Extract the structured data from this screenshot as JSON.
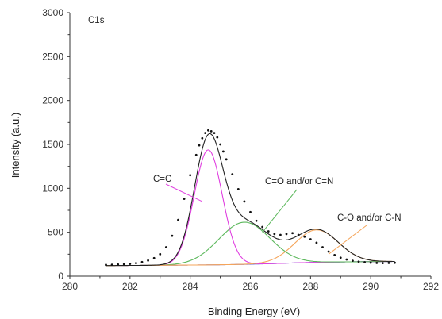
{
  "chart_data": {
    "type": "line",
    "title": "C1s",
    "xlabel": "Binding Energy (eV)",
    "ylabel": "Intensity (a.u.)",
    "xlim": [
      280,
      292
    ],
    "ylim": [
      0,
      3000
    ],
    "x_ticks": [
      "280",
      "282",
      "284",
      "286",
      "288",
      "290",
      "292"
    ],
    "y_ticks": [
      "0",
      "500",
      "1000",
      "1500",
      "2000",
      "2500",
      "3000"
    ],
    "grid": false,
    "baseline": 120,
    "measured": {
      "x": [
        281.2,
        281.4,
        281.6,
        281.8,
        282.0,
        282.2,
        282.4,
        282.6,
        282.8,
        283.0,
        283.2,
        283.4,
        283.6,
        283.8,
        284.0,
        284.2,
        284.3,
        284.4,
        284.5,
        284.6,
        284.7,
        284.8,
        284.9,
        285.0,
        285.1,
        285.2,
        285.4,
        285.6,
        285.8,
        286.0,
        286.2,
        286.4,
        286.6,
        286.8,
        287.0,
        287.2,
        287.4,
        287.6,
        287.8,
        288.0,
        288.2,
        288.4,
        288.6,
        288.8,
        289.0,
        289.2,
        289.4,
        289.6,
        289.8,
        290.0,
        290.2,
        290.4,
        290.6,
        290.8
      ],
      "y": [
        128,
        130,
        133,
        135,
        140,
        148,
        160,
        178,
        205,
        250,
        330,
        460,
        640,
        880,
        1150,
        1380,
        1490,
        1570,
        1630,
        1660,
        1650,
        1630,
        1580,
        1500,
        1420,
        1330,
        1160,
        990,
        850,
        730,
        630,
        560,
        510,
        480,
        470,
        480,
        490,
        470,
        450,
        420,
        380,
        330,
        280,
        240,
        210,
        190,
        175,
        165,
        158,
        153,
        150,
        148,
        150,
        152
      ]
    },
    "components": [
      {
        "name": "C=C",
        "center": 284.6,
        "amplitude": 1310,
        "fwhm": 1.1,
        "color": "#e040e0"
      },
      {
        "name": "C=O and/or C=N",
        "center": 285.8,
        "amplitude": 480,
        "fwhm": 2.0,
        "color": "#5cb85c"
      },
      {
        "name": "C-O and/or C-N",
        "center": 288.2,
        "amplitude": 370,
        "fwhm": 1.7,
        "color": "#f5a55a"
      }
    ],
    "background_color": "#4040d0",
    "envelope_color": "#222222",
    "annotations": [
      "C=C",
      "C=O and/or C=N",
      "C-O and/or C-N"
    ]
  }
}
